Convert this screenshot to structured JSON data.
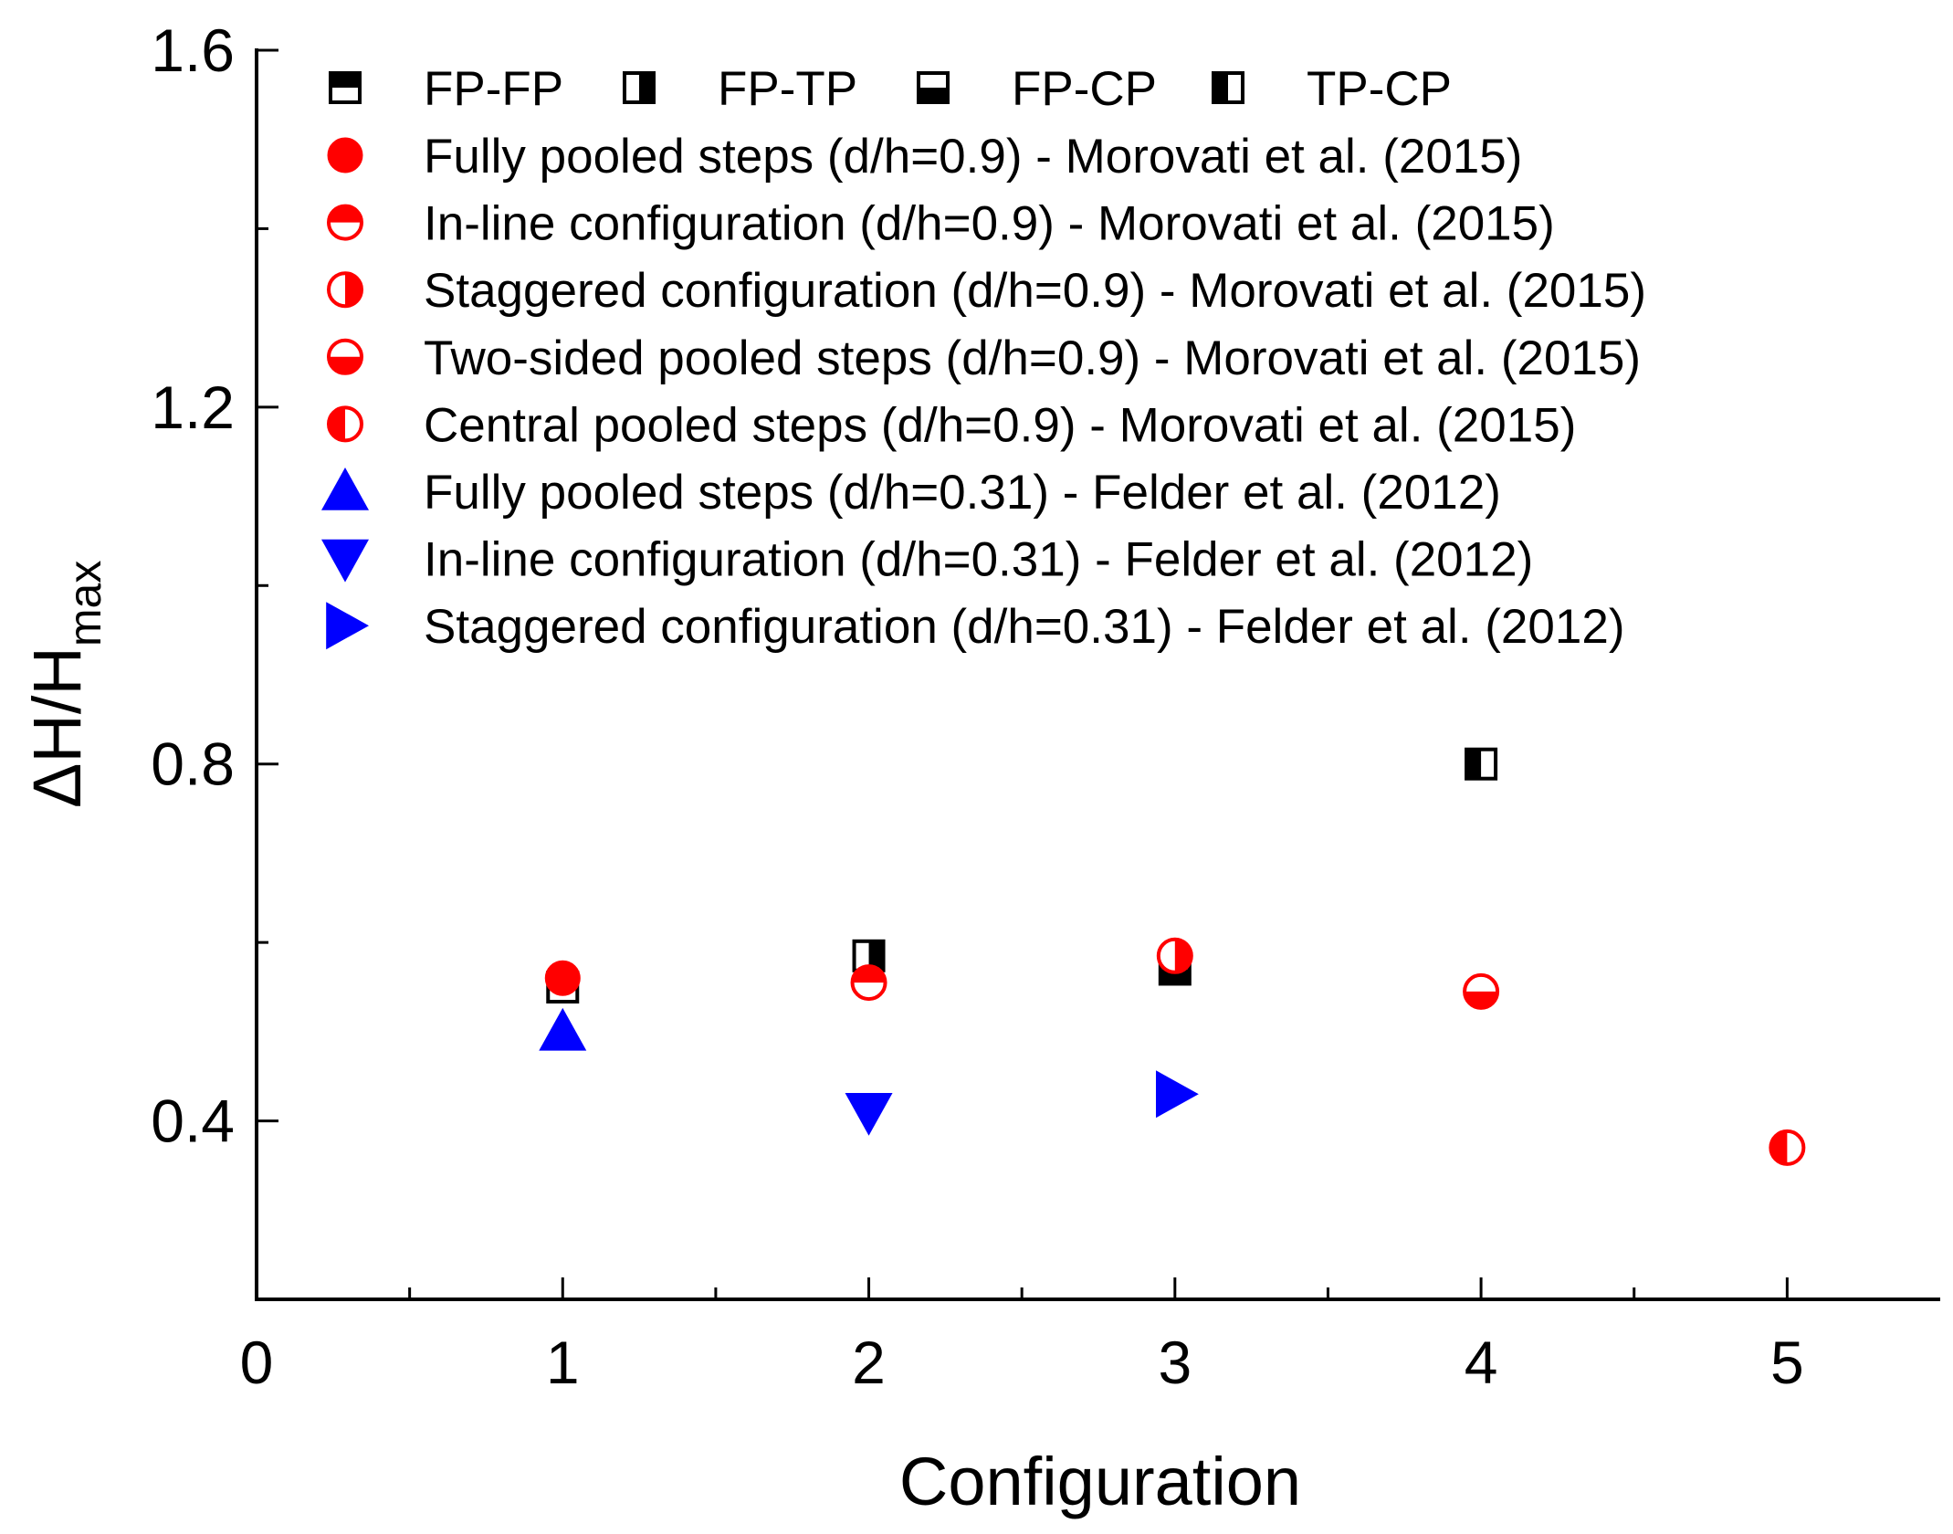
{
  "chart_data": {
    "type": "scatter",
    "xlabel": "Configuration",
    "ylabel": "ΔH/H",
    "ylabel_subscript": "max",
    "xlim": [
      0,
      5.5
    ],
    "ylim": [
      0.2,
      1.6
    ],
    "x_ticks": [
      0,
      1,
      2,
      3,
      4,
      5
    ],
    "x_tick_labels": [
      "0",
      "1",
      "2",
      "3",
      "4",
      "5"
    ],
    "x_minor_ticks": [
      0.5,
      1.5,
      2.5,
      3.5,
      4.5
    ],
    "y_ticks": [
      0.4,
      0.8,
      1.2,
      1.6
    ],
    "y_tick_labels": [
      "0.4",
      "0.8",
      "1.2",
      "1.6"
    ],
    "y_minor_ticks": [
      0.6,
      1.0,
      1.4
    ],
    "legend_position": "top",
    "legend_top_row": [
      {
        "name": "FP-FP",
        "marker": "square-top-half",
        "color": "#000000",
        "x": [
          1
        ],
        "y": [
          0.55
        ]
      },
      {
        "name": "FP-TP",
        "marker": "square-right-half",
        "color": "#000000",
        "x": [
          2
        ],
        "y": [
          0.585
        ]
      },
      {
        "name": "FP-CP",
        "marker": "square-bottom-half",
        "color": "#000000",
        "x": [
          3
        ],
        "y": [
          0.57
        ]
      },
      {
        "name": "TP-CP",
        "marker": "square-left-half",
        "color": "#000000",
        "x": [
          4
        ],
        "y": [
          0.8
        ]
      }
    ],
    "series": [
      {
        "name": "Fully pooled steps (d/h=0.9) - Morovati et al. (2015)",
        "marker": "circle-full",
        "color": "#ff0000",
        "x": [
          1
        ],
        "y": [
          0.56
        ]
      },
      {
        "name": "In-line configuration (d/h=0.9) - Morovati et al. (2015)",
        "marker": "circle-top-half",
        "color": "#ff0000",
        "x": [
          2
        ],
        "y": [
          0.555
        ]
      },
      {
        "name": "Staggered configuration (d/h=0.9) - Morovati et al. (2015)",
        "marker": "circle-right-half",
        "color": "#ff0000",
        "x": [
          3
        ],
        "y": [
          0.585
        ]
      },
      {
        "name": "Two-sided pooled steps (d/h=0.9) - Morovati et al. (2015)",
        "marker": "circle-bottom-half",
        "color": "#ff0000",
        "x": [
          4
        ],
        "y": [
          0.545
        ]
      },
      {
        "name": "Central pooled steps (d/h=0.9) - Morovati et al. (2015)",
        "marker": "circle-left-half",
        "color": "#ff0000",
        "x": [
          5
        ],
        "y": [
          0.37
        ]
      },
      {
        "name": "Fully pooled steps (d/h=0.31) - Felder et al. (2012)",
        "marker": "triangle-up",
        "color": "#0000ff",
        "x": [
          1
        ],
        "y": [
          0.5
        ]
      },
      {
        "name": "In-line configuration (d/h=0.31) - Felder et al. (2012)",
        "marker": "triangle-down",
        "color": "#0000ff",
        "x": [
          2
        ],
        "y": [
          0.41
        ]
      },
      {
        "name": "Staggered configuration (d/h=0.31) - Felder et al. (2012)",
        "marker": "triangle-right",
        "color": "#0000ff",
        "x": [
          3
        ],
        "y": [
          0.43
        ]
      }
    ]
  }
}
